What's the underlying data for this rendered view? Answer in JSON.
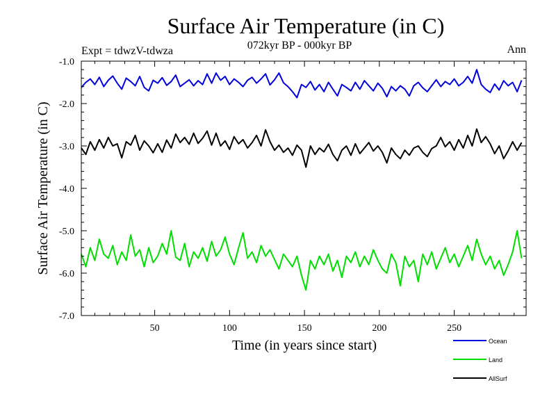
{
  "chart_data": {
    "type": "line",
    "title": "Surface Air Temperature (in C)",
    "subtitle": "072kyr BP - 000kyr BP",
    "experiment_label": "Expt = tdwzV-tdwza",
    "season_label": "Ann",
    "xlabel": "Time (in years since start)",
    "ylabel": "Surface Air Temperature (in C)",
    "xlim": [
      1,
      298
    ],
    "ylim": [
      -7.0,
      -1.0
    ],
    "x_ticks": [
      50,
      100,
      150,
      200,
      250
    ],
    "x_tick_labels": [
      "50",
      "100",
      "150",
      "200",
      "250"
    ],
    "y_ticks": [
      -1.0,
      -2.0,
      -3.0,
      -4.0,
      -5.0,
      -6.0,
      -7.0
    ],
    "y_tick_labels": [
      "-1.0",
      "-2.0",
      "-3.0",
      "-4.0",
      "-5.0",
      "-6.0",
      "-7.0"
    ],
    "legend_position": "bottom-right, below plot",
    "series": [
      {
        "name": "Ocean",
        "color": "#0000dd",
        "mean": -1.55,
        "x_start": 1,
        "x_step": 3,
        "values": [
          -1.62,
          -1.5,
          -1.42,
          -1.55,
          -1.38,
          -1.6,
          -1.45,
          -1.35,
          -1.52,
          -1.66,
          -1.4,
          -1.48,
          -1.58,
          -1.36,
          -1.62,
          -1.7,
          -1.45,
          -1.52,
          -1.39,
          -1.57,
          -1.48,
          -1.33,
          -1.6,
          -1.52,
          -1.44,
          -1.58,
          -1.46,
          -1.55,
          -1.3,
          -1.52,
          -1.28,
          -1.45,
          -1.36,
          -1.55,
          -1.42,
          -1.5,
          -1.6,
          -1.45,
          -1.38,
          -1.52,
          -1.42,
          -1.3,
          -1.56,
          -1.44,
          -1.28,
          -1.51,
          -1.6,
          -1.72,
          -1.86,
          -1.55,
          -1.62,
          -1.48,
          -1.68,
          -1.55,
          -1.72,
          -1.5,
          -1.66,
          -1.82,
          -1.55,
          -1.62,
          -1.7,
          -1.5,
          -1.66,
          -1.46,
          -1.58,
          -1.7,
          -1.52,
          -1.64,
          -1.84,
          -1.6,
          -1.7,
          -1.58,
          -1.66,
          -1.82,
          -1.58,
          -1.5,
          -1.63,
          -1.72,
          -1.58,
          -1.44,
          -1.6,
          -1.48,
          -1.55,
          -1.42,
          -1.58,
          -1.5,
          -1.36,
          -1.52,
          -1.2,
          -1.55,
          -1.66,
          -1.74,
          -1.54,
          -1.68,
          -1.46,
          -1.58,
          -1.5,
          -1.72,
          -1.45
        ]
      },
      {
        "name": "AllSurf",
        "color": "#000000",
        "mean": -3.0,
        "x_start": 1,
        "x_step": 3,
        "values": [
          -3.05,
          -3.2,
          -2.9,
          -3.1,
          -2.85,
          -3.05,
          -2.8,
          -3.0,
          -2.95,
          -3.28,
          -2.9,
          -2.98,
          -2.75,
          -3.1,
          -2.88,
          -3.0,
          -3.16,
          -2.95,
          -3.15,
          -2.86,
          -3.05,
          -2.72,
          -2.92,
          -2.8,
          -2.96,
          -2.7,
          -2.94,
          -2.82,
          -2.65,
          -2.98,
          -2.7,
          -3.0,
          -2.88,
          -3.08,
          -2.78,
          -2.95,
          -2.85,
          -3.05,
          -2.92,
          -2.75,
          -3.0,
          -2.62,
          -2.9,
          -3.1,
          -2.98,
          -3.15,
          -3.05,
          -3.22,
          -2.98,
          -3.1,
          -3.5,
          -3.0,
          -3.2,
          -3.05,
          -3.14,
          -2.96,
          -3.2,
          -3.35,
          -3.1,
          -3.0,
          -3.22,
          -2.95,
          -3.18,
          -3.05,
          -2.92,
          -3.12,
          -3.0,
          -3.15,
          -3.4,
          -3.05,
          -3.2,
          -3.3,
          -3.1,
          -3.22,
          -3.05,
          -3.0,
          -3.15,
          -3.25,
          -3.06,
          -3.0,
          -2.8,
          -3.02,
          -2.9,
          -3.1,
          -2.85,
          -3.05,
          -2.75,
          -3.0,
          -2.6,
          -2.92,
          -2.78,
          -2.95,
          -3.18,
          -3.0,
          -3.3,
          -3.12,
          -2.9,
          -3.1,
          -2.92
        ]
      },
      {
        "name": "Land",
        "color": "#00dd00",
        "mean": -5.6,
        "x_start": 1,
        "x_step": 3,
        "values": [
          -5.55,
          -5.85,
          -5.4,
          -5.7,
          -5.2,
          -5.55,
          -5.65,
          -5.35,
          -5.8,
          -5.5,
          -5.7,
          -5.1,
          -5.6,
          -5.45,
          -5.85,
          -5.4,
          -5.75,
          -5.6,
          -5.3,
          -5.55,
          -5.0,
          -5.62,
          -5.7,
          -5.3,
          -5.85,
          -5.5,
          -5.65,
          -5.4,
          -5.72,
          -5.25,
          -5.6,
          -5.45,
          -5.15,
          -5.55,
          -5.8,
          -5.4,
          -5.05,
          -5.65,
          -5.5,
          -5.75,
          -5.35,
          -5.6,
          -5.45,
          -5.68,
          -5.9,
          -5.55,
          -5.7,
          -5.85,
          -5.6,
          -6.05,
          -6.4,
          -5.7,
          -5.9,
          -5.6,
          -5.8,
          -5.55,
          -5.95,
          -5.7,
          -6.1,
          -5.6,
          -5.75,
          -5.5,
          -5.85,
          -5.6,
          -5.8,
          -5.45,
          -5.7,
          -5.9,
          -6.0,
          -5.55,
          -5.75,
          -6.3,
          -5.6,
          -5.85,
          -5.7,
          -6.2,
          -5.55,
          -5.8,
          -5.5,
          -5.9,
          -5.65,
          -5.4,
          -5.75,
          -5.55,
          -5.85,
          -5.6,
          -5.35,
          -5.7,
          -5.2,
          -5.55,
          -5.8,
          -5.6,
          -5.9,
          -5.7,
          -6.05,
          -5.8,
          -5.5,
          -5.0,
          -5.65
        ]
      }
    ],
    "legend_order": [
      "Ocean",
      "Land",
      "AllSurf"
    ]
  }
}
